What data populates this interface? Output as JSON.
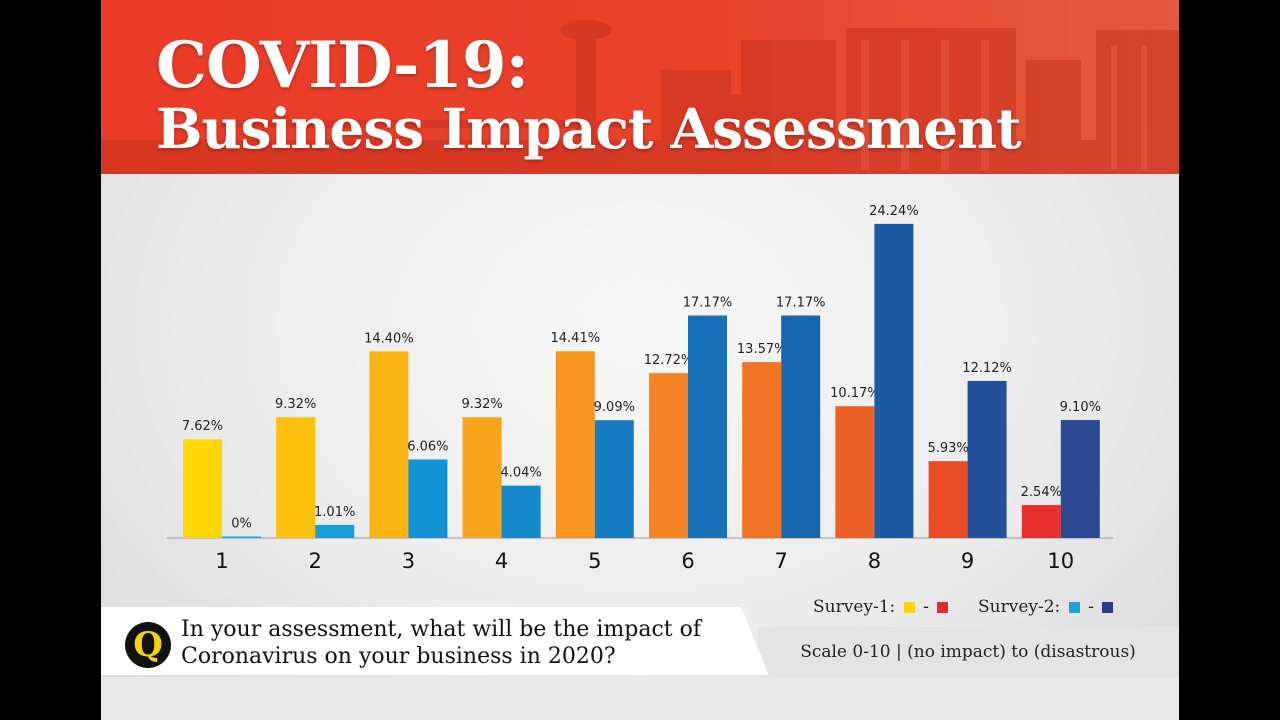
{
  "header": {
    "title_line1": "COVID-19:",
    "title_line2": "Business Impact Assessment",
    "bg_color": "#e8432b"
  },
  "legend": {
    "survey1_label": "Survey-1:",
    "survey2_label": "Survey-2:",
    "dash": "-",
    "survey1_colors": [
      "#ffd400",
      "#e8282b"
    ],
    "survey2_colors": [
      "#1aa3e0",
      "#2a3a8f"
    ]
  },
  "question": {
    "icon_letter": "Q",
    "line1": "In your assessment, what will be the impact of",
    "line2": "Coronavirus on your business in 2020?"
  },
  "scale_note": "Scale 0-10 | (no impact) to (disastrous)",
  "chart_data": {
    "type": "bar",
    "categories": [
      "1",
      "2",
      "3",
      "4",
      "5",
      "6",
      "7",
      "8",
      "9",
      "10"
    ],
    "series": [
      {
        "name": "Survey-1",
        "values": [
          7.62,
          9.32,
          14.4,
          9.32,
          14.41,
          12.72,
          13.57,
          10.17,
          5.93,
          2.54
        ],
        "labels": [
          "7.62%",
          "9.32%",
          "14.40%",
          "9.32%",
          "14.41%",
          "12.72%",
          "13.57%",
          "10.17%",
          "5.93%",
          "2.54%"
        ],
        "colors": [
          "#ffd600",
          "#fcc10f",
          "#fbb514",
          "#f8a51c",
          "#f7961f",
          "#f48423",
          "#f07425",
          "#ec6126",
          "#e94d28",
          "#e7302b"
        ]
      },
      {
        "name": "Survey-2",
        "values": [
          0,
          1.01,
          6.06,
          4.04,
          9.09,
          17.17,
          17.17,
          24.24,
          12.12,
          9.1
        ],
        "labels": [
          "0%",
          "1.01%",
          "6.06%",
          "4.04%",
          "9.09%",
          "17.17%",
          "17.17%",
          "24.24%",
          "12.12%",
          "9.10%"
        ],
        "colors": [
          "#1aa7e3",
          "#169ddc",
          "#1493d4",
          "#1488cb",
          "#157cc1",
          "#1671b8",
          "#1867ae",
          "#1d5aa4",
          "#23509b",
          "#2b4893"
        ]
      }
    ],
    "ylim": [
      0,
      25
    ]
  }
}
